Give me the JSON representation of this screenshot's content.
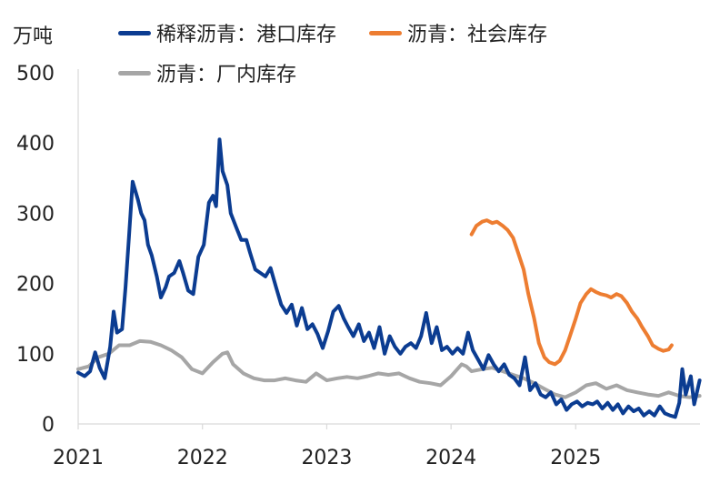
{
  "chart_data": {
    "type": "line",
    "unit_label": "万吨",
    "ylim": [
      0,
      500
    ],
    "yticks": [
      0,
      100,
      200,
      300,
      400,
      500
    ],
    "xlim": [
      "2021-01-01",
      "2026-01-01"
    ],
    "xticks": [
      "2021",
      "2022",
      "2023",
      "2024",
      "2025"
    ],
    "grid": false,
    "legend_position": "top",
    "series": [
      {
        "name": "稀释沥青：港口库存",
        "color": "#0b3c91",
        "points": [
          [
            "2021-01-01",
            73
          ],
          [
            "2021-01-20",
            68
          ],
          [
            "2021-02-05",
            75
          ],
          [
            "2021-02-20",
            102
          ],
          [
            "2021-03-05",
            80
          ],
          [
            "2021-03-20",
            65
          ],
          [
            "2021-04-05",
            110
          ],
          [
            "2021-04-15",
            160
          ],
          [
            "2021-04-25",
            130
          ],
          [
            "2021-05-10",
            135
          ],
          [
            "2021-05-20",
            195
          ],
          [
            "2021-05-30",
            265
          ],
          [
            "2021-06-10",
            345
          ],
          [
            "2021-06-25",
            320
          ],
          [
            "2021-07-05",
            300
          ],
          [
            "2021-07-15",
            290
          ],
          [
            "2021-07-25",
            255
          ],
          [
            "2021-08-05",
            240
          ],
          [
            "2021-08-20",
            210
          ],
          [
            "2021-09-01",
            180
          ],
          [
            "2021-09-15",
            195
          ],
          [
            "2021-09-25",
            210
          ],
          [
            "2021-10-10",
            215
          ],
          [
            "2021-10-25",
            232
          ],
          [
            "2021-11-05",
            215
          ],
          [
            "2021-11-20",
            190
          ],
          [
            "2021-12-05",
            185
          ],
          [
            "2021-12-20",
            238
          ],
          [
            "2022-01-05",
            255
          ],
          [
            "2022-01-20",
            315
          ],
          [
            "2022-02-01",
            325
          ],
          [
            "2022-02-10",
            310
          ],
          [
            "2022-02-20",
            405
          ],
          [
            "2022-03-01",
            360
          ],
          [
            "2022-03-15",
            340
          ],
          [
            "2022-03-25",
            300
          ],
          [
            "2022-04-10",
            280
          ],
          [
            "2022-04-25",
            262
          ],
          [
            "2022-05-10",
            262
          ],
          [
            "2022-05-20",
            245
          ],
          [
            "2022-06-05",
            220
          ],
          [
            "2022-06-20",
            215
          ],
          [
            "2022-07-05",
            210
          ],
          [
            "2022-07-20",
            222
          ],
          [
            "2022-08-05",
            195
          ],
          [
            "2022-08-20",
            170
          ],
          [
            "2022-09-05",
            158
          ],
          [
            "2022-09-20",
            170
          ],
          [
            "2022-10-05",
            140
          ],
          [
            "2022-10-20",
            165
          ],
          [
            "2022-11-05",
            135
          ],
          [
            "2022-11-20",
            142
          ],
          [
            "2022-12-05",
            128
          ],
          [
            "2022-12-20",
            108
          ],
          [
            "2023-01-05",
            132
          ],
          [
            "2023-01-20",
            160
          ],
          [
            "2023-02-05",
            168
          ],
          [
            "2023-02-20",
            150
          ],
          [
            "2023-03-05",
            138
          ],
          [
            "2023-03-20",
            125
          ],
          [
            "2023-04-05",
            142
          ],
          [
            "2023-04-20",
            118
          ],
          [
            "2023-05-05",
            130
          ],
          [
            "2023-05-20",
            108
          ],
          [
            "2023-06-05",
            138
          ],
          [
            "2023-06-20",
            100
          ],
          [
            "2023-07-05",
            125
          ],
          [
            "2023-07-20",
            110
          ],
          [
            "2023-08-05",
            100
          ],
          [
            "2023-08-20",
            110
          ],
          [
            "2023-09-05",
            115
          ],
          [
            "2023-09-20",
            108
          ],
          [
            "2023-10-05",
            125
          ],
          [
            "2023-10-20",
            158
          ],
          [
            "2023-11-05",
            115
          ],
          [
            "2023-11-20",
            138
          ],
          [
            "2023-12-05",
            105
          ],
          [
            "2023-12-20",
            110
          ],
          [
            "2024-01-05",
            100
          ],
          [
            "2024-01-20",
            108
          ],
          [
            "2024-02-05",
            100
          ],
          [
            "2024-02-20",
            130
          ],
          [
            "2024-03-05",
            105
          ],
          [
            "2024-03-20",
            92
          ],
          [
            "2024-04-05",
            78
          ],
          [
            "2024-04-20",
            98
          ],
          [
            "2024-05-05",
            85
          ],
          [
            "2024-05-20",
            75
          ],
          [
            "2024-06-05",
            85
          ],
          [
            "2024-06-20",
            70
          ],
          [
            "2024-07-05",
            65
          ],
          [
            "2024-07-20",
            55
          ],
          [
            "2024-08-05",
            95
          ],
          [
            "2024-08-20",
            48
          ],
          [
            "2024-09-05",
            58
          ],
          [
            "2024-09-20",
            42
          ],
          [
            "2024-10-05",
            38
          ],
          [
            "2024-10-20",
            45
          ],
          [
            "2024-11-05",
            28
          ],
          [
            "2024-11-20",
            35
          ],
          [
            "2024-12-05",
            20
          ],
          [
            "2024-12-20",
            28
          ],
          [
            "2025-01-05",
            32
          ],
          [
            "2025-01-20",
            25
          ],
          [
            "2025-02-05",
            30
          ],
          [
            "2025-02-20",
            28
          ],
          [
            "2025-03-05",
            32
          ],
          [
            "2025-03-20",
            22
          ],
          [
            "2025-04-05",
            30
          ],
          [
            "2025-04-20",
            20
          ],
          [
            "2025-05-05",
            28
          ],
          [
            "2025-05-20",
            15
          ],
          [
            "2025-06-05",
            25
          ],
          [
            "2025-06-20",
            18
          ],
          [
            "2025-07-05",
            22
          ],
          [
            "2025-07-20",
            12
          ],
          [
            "2025-08-05",
            18
          ],
          [
            "2025-08-20",
            12
          ],
          [
            "2025-09-05",
            25
          ],
          [
            "2025-09-20",
            15
          ],
          [
            "2025-10-05",
            12
          ],
          [
            "2025-10-20",
            10
          ],
          [
            "2025-11-01",
            30
          ],
          [
            "2025-11-10",
            78
          ],
          [
            "2025-11-20",
            42
          ],
          [
            "2025-12-05",
            68
          ],
          [
            "2025-12-15",
            28
          ],
          [
            "2025-12-31",
            62
          ]
        ]
      },
      {
        "name": "沥青：社会库存",
        "color": "#ed7d31",
        "points": [
          [
            "2024-03-01",
            270
          ],
          [
            "2024-03-15",
            282
          ],
          [
            "2024-04-01",
            288
          ],
          [
            "2024-04-15",
            290
          ],
          [
            "2024-05-01",
            286
          ],
          [
            "2024-05-15",
            288
          ],
          [
            "2024-06-01",
            282
          ],
          [
            "2024-06-15",
            276
          ],
          [
            "2024-07-01",
            265
          ],
          [
            "2024-07-15",
            245
          ],
          [
            "2024-08-01",
            220
          ],
          [
            "2024-08-15",
            185
          ],
          [
            "2024-09-01",
            150
          ],
          [
            "2024-09-15",
            115
          ],
          [
            "2024-10-01",
            95
          ],
          [
            "2024-10-15",
            88
          ],
          [
            "2024-11-01",
            85
          ],
          [
            "2024-11-15",
            90
          ],
          [
            "2024-12-01",
            105
          ],
          [
            "2024-12-15",
            125
          ],
          [
            "2025-01-01",
            150
          ],
          [
            "2025-01-15",
            172
          ],
          [
            "2025-02-01",
            185
          ],
          [
            "2025-02-15",
            192
          ],
          [
            "2025-03-01",
            188
          ],
          [
            "2025-03-15",
            185
          ],
          [
            "2025-04-01",
            183
          ],
          [
            "2025-04-15",
            180
          ],
          [
            "2025-05-01",
            185
          ],
          [
            "2025-05-15",
            182
          ],
          [
            "2025-06-01",
            172
          ],
          [
            "2025-06-15",
            160
          ],
          [
            "2025-07-01",
            150
          ],
          [
            "2025-07-15",
            138
          ],
          [
            "2025-08-01",
            125
          ],
          [
            "2025-08-15",
            112
          ],
          [
            "2025-09-01",
            107
          ],
          [
            "2025-09-15",
            104
          ],
          [
            "2025-10-01",
            106
          ],
          [
            "2025-10-10",
            112
          ]
        ]
      },
      {
        "name": "沥青：厂内库存",
        "color": "#a6a6a6",
        "points": [
          [
            "2021-01-01",
            78
          ],
          [
            "2021-02-01",
            82
          ],
          [
            "2021-03-01",
            95
          ],
          [
            "2021-04-01",
            100
          ],
          [
            "2021-05-01",
            112
          ],
          [
            "2021-06-01",
            112
          ],
          [
            "2021-07-01",
            118
          ],
          [
            "2021-08-01",
            117
          ],
          [
            "2021-09-01",
            112
          ],
          [
            "2021-10-01",
            105
          ],
          [
            "2021-11-01",
            95
          ],
          [
            "2021-12-01",
            78
          ],
          [
            "2022-01-01",
            72
          ],
          [
            "2022-02-01",
            88
          ],
          [
            "2022-03-01",
            100
          ],
          [
            "2022-03-15",
            102
          ],
          [
            "2022-04-01",
            85
          ],
          [
            "2022-05-01",
            72
          ],
          [
            "2022-06-01",
            65
          ],
          [
            "2022-07-01",
            62
          ],
          [
            "2022-08-01",
            62
          ],
          [
            "2022-09-01",
            65
          ],
          [
            "2022-10-01",
            62
          ],
          [
            "2022-11-01",
            60
          ],
          [
            "2022-12-01",
            72
          ],
          [
            "2023-01-01",
            62
          ],
          [
            "2023-02-01",
            65
          ],
          [
            "2023-03-01",
            67
          ],
          [
            "2023-04-01",
            65
          ],
          [
            "2023-05-01",
            68
          ],
          [
            "2023-06-01",
            72
          ],
          [
            "2023-07-01",
            70
          ],
          [
            "2023-08-01",
            72
          ],
          [
            "2023-09-01",
            65
          ],
          [
            "2023-10-01",
            60
          ],
          [
            "2023-11-01",
            58
          ],
          [
            "2023-12-01",
            55
          ],
          [
            "2024-01-01",
            68
          ],
          [
            "2024-02-01",
            85
          ],
          [
            "2024-02-15",
            82
          ],
          [
            "2024-03-01",
            75
          ],
          [
            "2024-04-01",
            78
          ],
          [
            "2024-05-01",
            80
          ],
          [
            "2024-06-01",
            75
          ],
          [
            "2024-07-01",
            70
          ],
          [
            "2024-08-01",
            65
          ],
          [
            "2024-09-01",
            58
          ],
          [
            "2024-10-01",
            50
          ],
          [
            "2024-11-01",
            42
          ],
          [
            "2024-12-01",
            38
          ],
          [
            "2025-01-01",
            45
          ],
          [
            "2025-02-01",
            55
          ],
          [
            "2025-03-01",
            58
          ],
          [
            "2025-04-01",
            50
          ],
          [
            "2025-05-01",
            55
          ],
          [
            "2025-06-01",
            48
          ],
          [
            "2025-07-01",
            45
          ],
          [
            "2025-08-01",
            42
          ],
          [
            "2025-09-01",
            40
          ],
          [
            "2025-10-01",
            45
          ],
          [
            "2025-11-01",
            40
          ],
          [
            "2025-12-01",
            38
          ],
          [
            "2025-12-31",
            40
          ]
        ]
      }
    ]
  }
}
